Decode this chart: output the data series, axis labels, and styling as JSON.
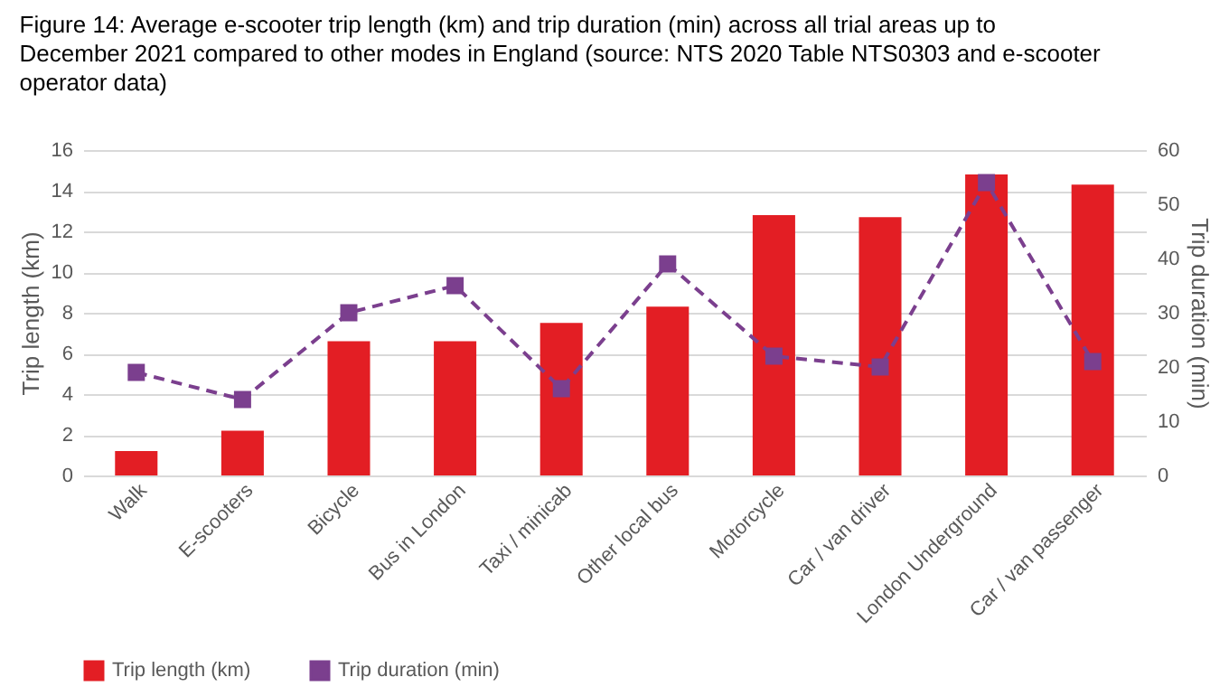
{
  "chart_data": {
    "type": "bar",
    "title": "Figure 14: Average e-scooter trip length (km) and trip duration (min) across all trial areas up to December 2021 compared to other modes in England (source: NTS 2020 Table NTS0303 and e-scooter operator data)",
    "categories": [
      "Walk",
      "E-scooters",
      "Bicycle",
      "Bus in London",
      "Taxi / minicab",
      "Other local bus",
      "Motorcycle",
      "Car / van driver",
      "London Underground",
      "Car / van passenger"
    ],
    "series": [
      {
        "name": "Trip length (km)",
        "color": "#e31e24",
        "values": [
          1.2,
          2.2,
          6.6,
          6.6,
          7.5,
          8.3,
          12.8,
          12.7,
          14.8,
          14.3
        ]
      },
      {
        "name": "Trip duration (min)",
        "type": "line",
        "axis": "y2",
        "color": "#7b3f8e",
        "marker": "square",
        "line_style": "dashed",
        "values": [
          19,
          14,
          30,
          35,
          16,
          39,
          22,
          20,
          54,
          21
        ]
      }
    ],
    "ylabel": "Trip length (km)",
    "y2label": "Trip duration (min)",
    "ylim": [
      0,
      16
    ],
    "yticks": [
      0,
      2,
      4,
      6,
      8,
      10,
      12,
      14,
      16
    ],
    "y2lim": [
      0,
      60
    ],
    "y2ticks": [
      0,
      10,
      20,
      30,
      40,
      50,
      60
    ],
    "grid": "y",
    "legend": "bottom"
  }
}
